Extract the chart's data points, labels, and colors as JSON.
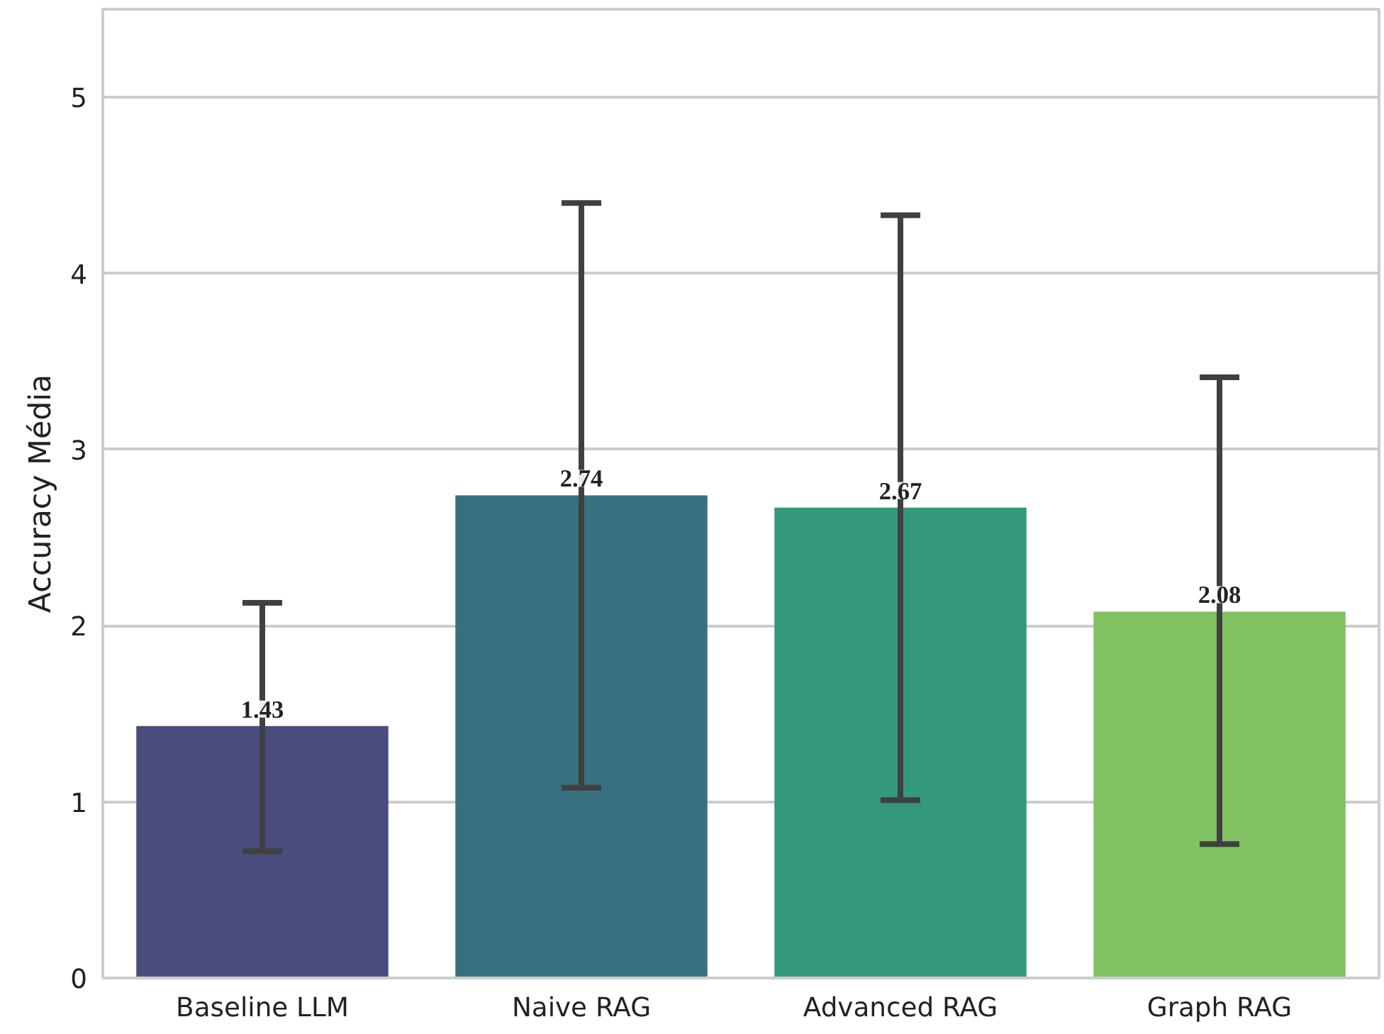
{
  "chart_data": {
    "type": "bar",
    "ylabel": "Accuracy Média",
    "categories": [
      "Baseline LLM",
      "Naive RAG",
      "Advanced RAG",
      "Graph RAG"
    ],
    "values": [
      1.43,
      2.74,
      2.67,
      2.08
    ],
    "colors": [
      "#4a4c7e",
      "#37707f",
      "#34987c",
      "#80c262"
    ],
    "errors": [
      [
        0.72,
        2.13
      ],
      [
        1.08,
        4.4
      ],
      [
        1.01,
        4.33
      ],
      [
        0.76,
        3.41
      ]
    ],
    "ylim": [
      0,
      5.5
    ],
    "yticks": [
      0,
      1,
      2,
      3,
      4,
      5
    ],
    "grid": "y",
    "data_labels": true
  }
}
